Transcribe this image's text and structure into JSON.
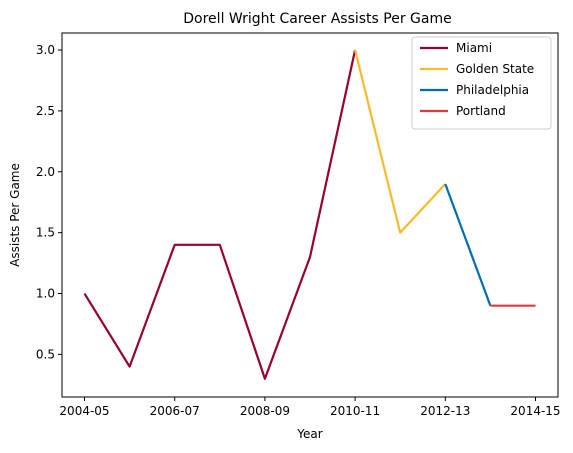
{
  "chart_data": {
    "type": "line",
    "title": "Dorell Wright Career Assists Per Game",
    "xlabel": "Year",
    "ylabel": "Assists Per Game",
    "x_categories": [
      "2004-05",
      "2005-06",
      "2006-07",
      "2007-08",
      "2008-09",
      "2009-10",
      "2010-11",
      "2011-12",
      "2012-13",
      "2013-14",
      "2014-15"
    ],
    "x_tick_labels": [
      "2004-05",
      "2006-07",
      "2008-09",
      "2010-11",
      "2012-13",
      "2014-15"
    ],
    "y_ticks": [
      0.5,
      1.0,
      1.5,
      2.0,
      2.5,
      3.0
    ],
    "y_tick_labels": [
      "0.5",
      "1.0",
      "1.5",
      "2.0",
      "2.5",
      "3.0"
    ],
    "ylim": [
      0.15,
      3.14
    ],
    "grid": false,
    "legend_position": "top-right",
    "series": [
      {
        "name": "Miami",
        "color": "#98002E",
        "x": [
          "2004-05",
          "2005-06",
          "2006-07",
          "2007-08",
          "2008-09",
          "2009-10",
          "2010-11"
        ],
        "values": [
          1.0,
          0.4,
          1.4,
          1.4,
          0.3,
          1.3,
          3.0
        ]
      },
      {
        "name": "Golden State",
        "color": "#FDB927",
        "x": [
          "2010-11",
          "2011-12",
          "2012-13"
        ],
        "values": [
          3.0,
          1.5,
          1.9
        ]
      },
      {
        "name": "Philadelphia",
        "color": "#006BB6",
        "x": [
          "2012-13",
          "2013-14"
        ],
        "values": [
          1.9,
          0.9
        ]
      },
      {
        "name": "Portland",
        "color": "#E03A3E",
        "x": [
          "2013-14",
          "2014-15"
        ],
        "values": [
          0.9,
          0.9
        ]
      }
    ]
  }
}
